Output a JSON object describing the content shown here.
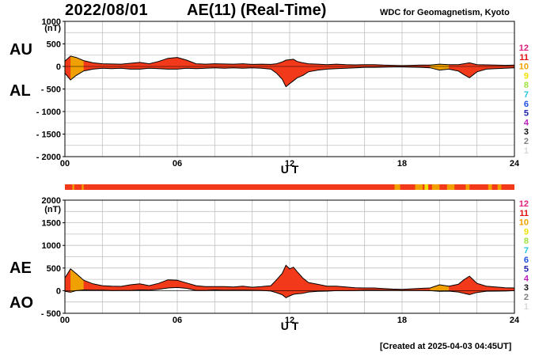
{
  "header": {
    "date": "2022/08/01",
    "title": "AE(11) (Real-Time)",
    "organization": "WDC for Geomagnetism, Kyoto"
  },
  "footer": "[Created at 2025-04-03 04:45UT]",
  "legend": {
    "labels": [
      "12",
      "11",
      "10",
      "9",
      "8",
      "7",
      "6",
      "5",
      "4",
      "3",
      "2",
      "1"
    ],
    "colors": [
      "#e0207a",
      "#e01010",
      "#f0a000",
      "#f0e000",
      "#a0e040",
      "#20c8e0",
      "#2050e0",
      "#2020b0",
      "#c020c0",
      "#101010",
      "#808080",
      "#d8d8d8"
    ]
  },
  "colors": {
    "area": "#f23a1a",
    "orange": "#f0a000",
    "yellow": "#f0e000",
    "grid": "#c0c0c0"
  },
  "chart_data": [
    {
      "type": "area",
      "name": "AU/AL",
      "labels": {
        "upper": "AU",
        "lower": "AL"
      },
      "unit": "(nT)",
      "xlabel": "U T",
      "xticks": [
        0,
        6,
        12,
        18,
        24
      ],
      "xtick_labels": [
        "00",
        "06",
        "12",
        "18",
        "24"
      ],
      "yticks": [
        1000,
        500,
        0,
        -500,
        -1000,
        -1500,
        -2000
      ],
      "ytick_labels": [
        "1000",
        "500",
        "0",
        "- 500",
        "- 1000",
        "- 1500",
        "- 2000"
      ],
      "ylim": [
        -2000,
        1000
      ],
      "xlim": [
        0,
        24
      ],
      "series": [
        {
          "name": "AU",
          "x": [
            0,
            0.3,
            0.6,
            1,
            1.5,
            2,
            2.5,
            3,
            3.5,
            4,
            4.5,
            5,
            5.5,
            6,
            6.5,
            7,
            7.5,
            8,
            8.5,
            9,
            9.5,
            10,
            10.5,
            11,
            11.3,
            11.6,
            11.8,
            12,
            12.2,
            12.4,
            12.7,
            13,
            13.5,
            14,
            14.5,
            15,
            15.5,
            16,
            16.5,
            17,
            17.5,
            18,
            18.5,
            19,
            19.5,
            20,
            20.5,
            21,
            21.3,
            21.6,
            22,
            22.5,
            23,
            23.5,
            24
          ],
          "values": [
            120,
            230,
            200,
            130,
            80,
            60,
            55,
            50,
            70,
            90,
            60,
            110,
            180,
            200,
            140,
            60,
            50,
            60,
            55,
            50,
            60,
            45,
            50,
            45,
            60,
            100,
            140,
            150,
            160,
            110,
            80,
            60,
            50,
            40,
            50,
            40,
            35,
            40,
            40,
            30,
            25,
            20,
            25,
            30,
            30,
            50,
            40,
            40,
            60,
            80,
            40,
            35,
            30,
            25,
            30
          ]
        },
        {
          "name": "AL",
          "x": [
            0,
            0.3,
            0.6,
            1,
            1.5,
            2,
            2.5,
            3,
            3.5,
            4,
            4.5,
            5,
            5.5,
            6,
            6.5,
            7,
            7.5,
            8,
            8.5,
            9,
            9.5,
            10,
            10.5,
            11,
            11.3,
            11.6,
            11.8,
            12,
            12.2,
            12.4,
            12.7,
            13,
            13.5,
            14,
            14.5,
            15,
            15.5,
            16,
            16.5,
            17,
            17.5,
            18,
            18.5,
            19,
            19.5,
            20,
            20.5,
            21,
            21.3,
            21.6,
            22,
            22.5,
            23,
            23.5,
            24
          ],
          "values": [
            -150,
            -300,
            -200,
            -100,
            -60,
            -40,
            -50,
            -40,
            -60,
            -60,
            -40,
            -50,
            -60,
            -60,
            -40,
            -50,
            -40,
            -30,
            -40,
            -30,
            -40,
            -30,
            -40,
            -60,
            -150,
            -280,
            -450,
            -380,
            -320,
            -250,
            -200,
            -120,
            -80,
            -60,
            -50,
            -40,
            -30,
            -20,
            -20,
            -15,
            -10,
            -10,
            -15,
            -20,
            -30,
            -80,
            -60,
            -100,
            -180,
            -250,
            -120,
            -60,
            -50,
            -40,
            -30
          ]
        }
      ]
    },
    {
      "type": "area",
      "name": "AE/AO",
      "labels": {
        "upper": "AE",
        "lower": "AO"
      },
      "unit": "(nT)",
      "xlabel": "U T",
      "xticks": [
        0,
        6,
        12,
        18,
        24
      ],
      "xtick_labels": [
        "00",
        "06",
        "12",
        "18",
        "24"
      ],
      "yticks": [
        2000,
        1500,
        1000,
        500,
        0,
        -500
      ],
      "ytick_labels": [
        "2000",
        "1500",
        "1000",
        "500",
        "0",
        "- 500"
      ],
      "ylim": [
        -500,
        2000
      ],
      "xlim": [
        0,
        24
      ],
      "series": [
        {
          "name": "AE",
          "x": [
            0,
            0.3,
            0.6,
            1,
            1.5,
            2,
            2.5,
            3,
            3.5,
            4,
            4.5,
            5,
            5.5,
            6,
            6.5,
            7,
            7.5,
            8,
            8.5,
            9,
            9.5,
            10,
            10.5,
            11,
            11.3,
            11.6,
            11.8,
            12,
            12.2,
            12.4,
            12.7,
            13,
            13.5,
            14,
            14.5,
            15,
            15.5,
            16,
            16.5,
            17,
            17.5,
            18,
            18.5,
            19,
            19.5,
            20,
            20.5,
            21,
            21.3,
            21.6,
            22,
            22.5,
            23,
            23.5,
            24
          ],
          "values": [
            280,
            480,
            380,
            230,
            150,
            110,
            100,
            95,
            130,
            150,
            110,
            160,
            240,
            230,
            170,
            110,
            90,
            90,
            90,
            80,
            100,
            75,
            90,
            110,
            240,
            380,
            560,
            480,
            520,
            420,
            280,
            180,
            140,
            100,
            100,
            80,
            65,
            60,
            60,
            45,
            35,
            30,
            40,
            50,
            60,
            130,
            100,
            140,
            240,
            320,
            160,
            100,
            80,
            65,
            60
          ]
        },
        {
          "name": "AO",
          "x": [
            0,
            0.3,
            0.6,
            1,
            1.5,
            2,
            2.5,
            3,
            3.5,
            4,
            4.5,
            5,
            5.5,
            6,
            6.5,
            7,
            7.5,
            8,
            8.5,
            9,
            9.5,
            10,
            10.5,
            11,
            11.3,
            11.6,
            11.8,
            12,
            12.2,
            12.4,
            12.7,
            13,
            13.5,
            14,
            14.5,
            15,
            15.5,
            16,
            16.5,
            17,
            17.5,
            18,
            18.5,
            19,
            19.5,
            20,
            20.5,
            21,
            21.3,
            21.6,
            22,
            22.5,
            23,
            23.5,
            24
          ],
          "values": [
            -15,
            -35,
            0,
            15,
            10,
            10,
            3,
            5,
            5,
            15,
            10,
            30,
            60,
            70,
            50,
            5,
            5,
            15,
            8,
            10,
            10,
            8,
            5,
            -8,
            -45,
            -90,
            -155,
            -115,
            -80,
            -70,
            -60,
            -30,
            -15,
            -10,
            0,
            0,
            3,
            10,
            10,
            8,
            8,
            5,
            5,
            5,
            0,
            -15,
            -10,
            -30,
            -60,
            -85,
            -40,
            -13,
            -10,
            -8,
            0
          ]
        }
      ],
      "activity_bar": {
        "label_none": "",
        "segments": [
          [
            "orange",
            0.4,
            0.5
          ],
          [
            "orange",
            0.9,
            1.0
          ],
          [
            "orange",
            17.6,
            17.9
          ],
          [
            "orange",
            18.7,
            19.1
          ],
          [
            "yellow",
            19.2,
            19.4
          ],
          [
            "orange",
            19.6,
            20.0
          ],
          [
            "orange",
            20.4,
            20.8
          ],
          [
            "orange",
            21.4,
            21.6
          ],
          [
            "orange",
            22.6,
            22.8
          ],
          [
            "orange",
            23.1,
            23.3
          ]
        ]
      }
    }
  ]
}
